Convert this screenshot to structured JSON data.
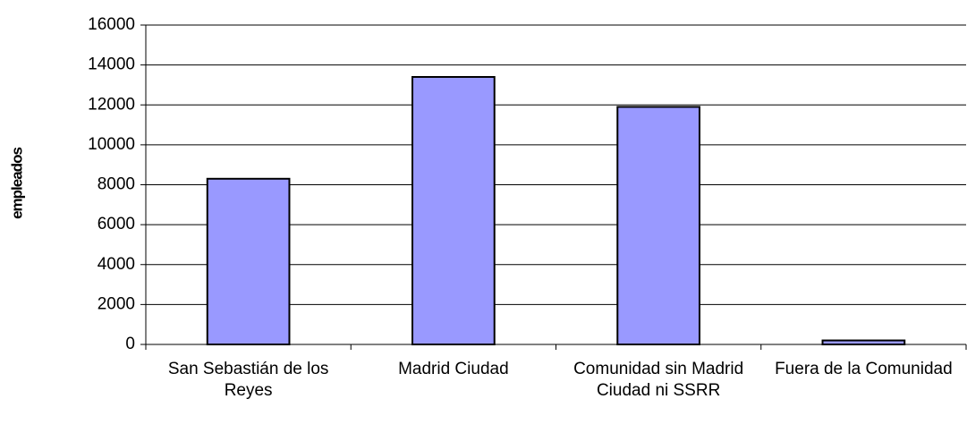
{
  "chart_data": {
    "type": "bar",
    "y_label": "empleados",
    "categories": [
      "San Sebastián de los Reyes",
      "Madrid Ciudad",
      "Comunidad sin Madrid Ciudad ni SSRR",
      "Fuera de la Comunidad"
    ],
    "values": [
      8300,
      13400,
      11900,
      200
    ],
    "color": "#9999ff",
    "ylim": [
      0,
      16000
    ],
    "yticks": [
      0,
      2000,
      4000,
      6000,
      8000,
      10000,
      12000,
      14000,
      16000
    ],
    "grid": true
  }
}
